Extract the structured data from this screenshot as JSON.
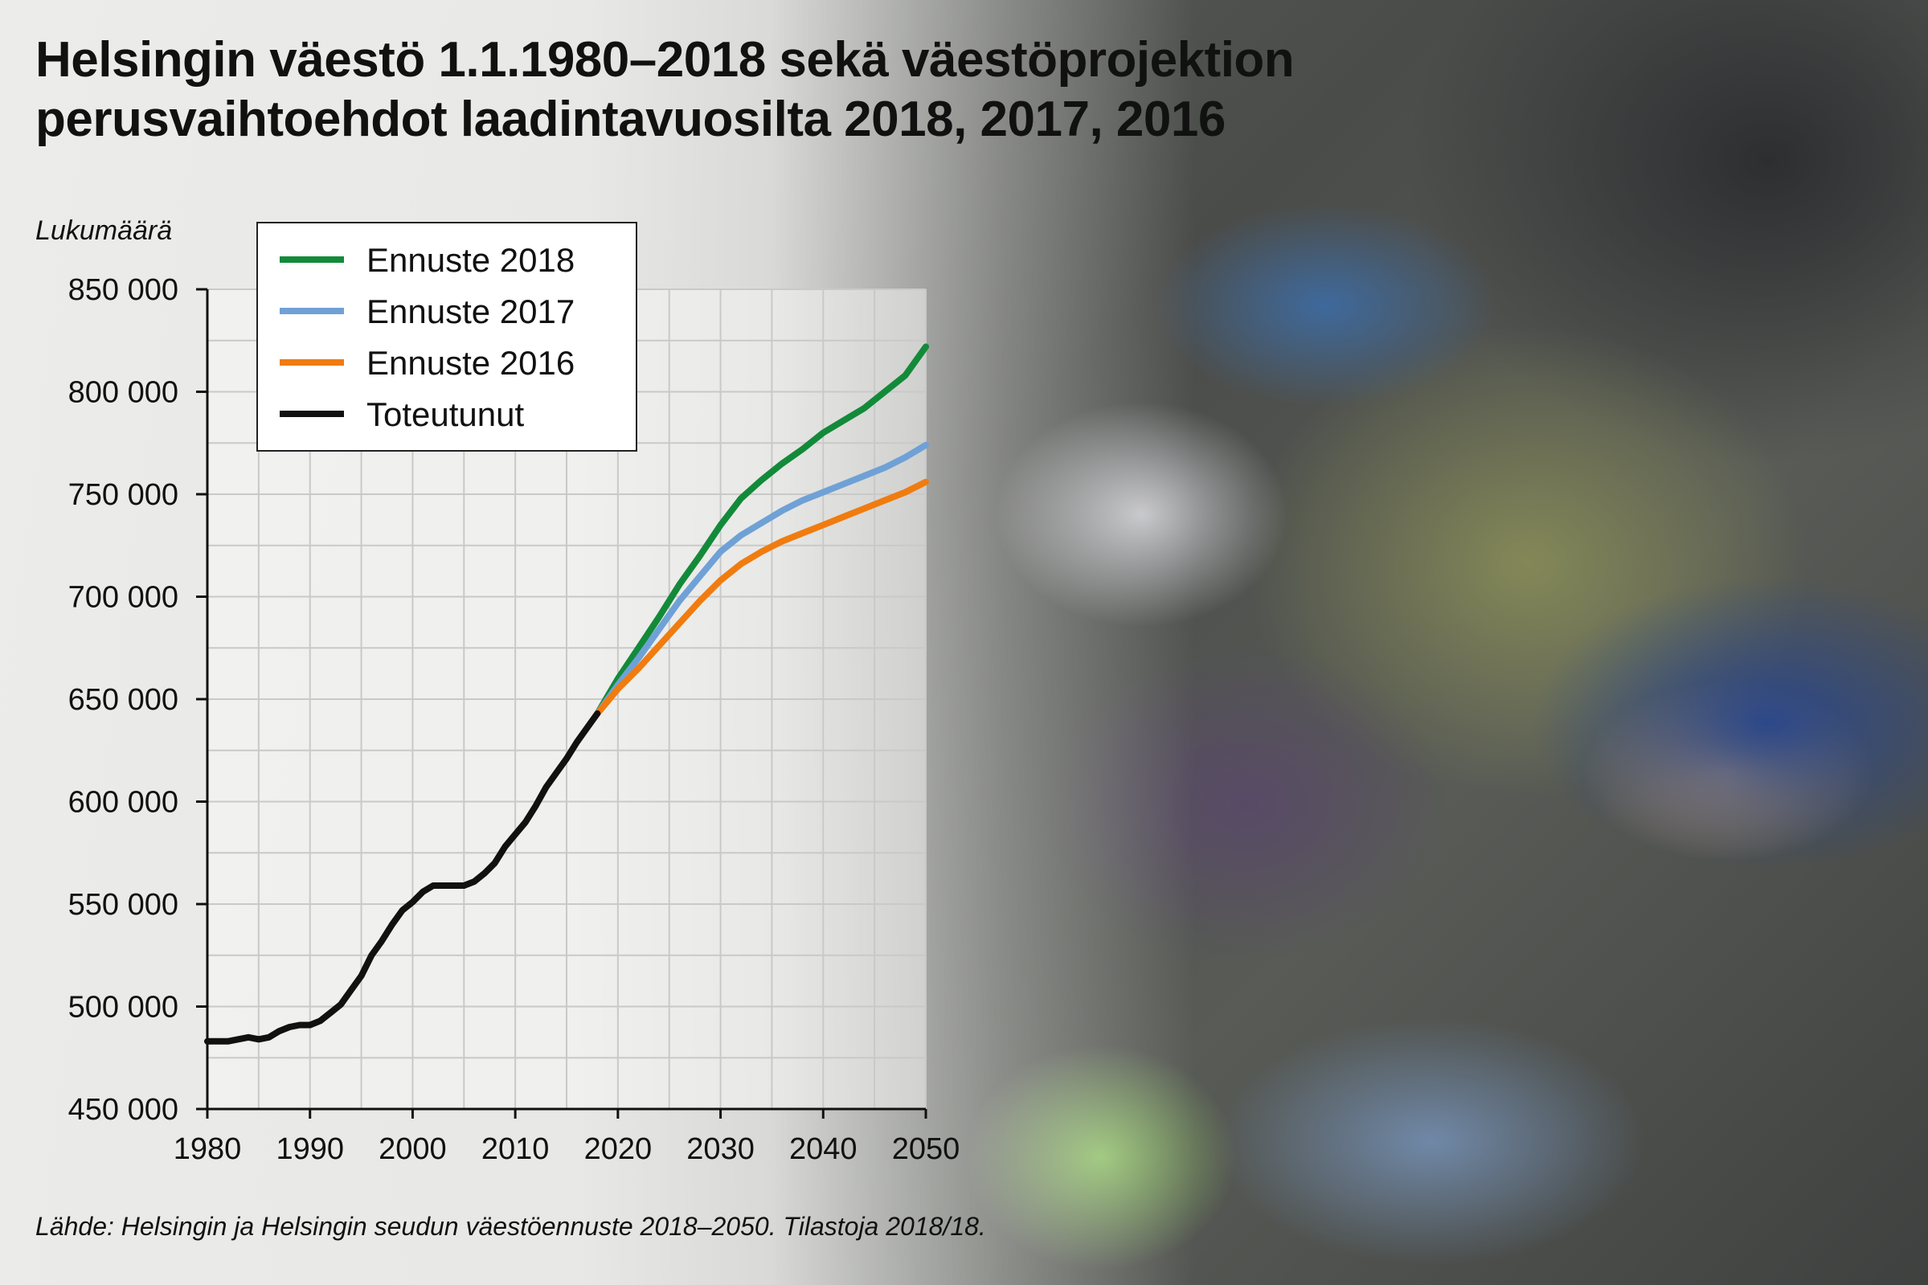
{
  "title_lines": [
    "Helsingin väestö 1.1.1980–2018 sekä väestöprojektion",
    "perusvaihtoehdot laadintavuosilta 2018, 2017, 2016"
  ],
  "source": "Lähde: Helsingin ja Helsingin seudun väestöennuste 2018–2050. Tilastoja 2018/18.",
  "chart_data": {
    "type": "line",
    "title": "Helsingin väestö 1.1.1980–2018 sekä väestöprojektion perusvaihtoehdot laadintavuosilta 2018, 2017, 2016",
    "ylabel": "Lukumäärä",
    "xlabel": "",
    "xlim": [
      1980,
      2050
    ],
    "ylim": [
      450000,
      850000
    ],
    "x_ticks": [
      1980,
      1990,
      2000,
      2010,
      2020,
      2030,
      2040,
      2050
    ],
    "y_ticks": [
      450000,
      500000,
      550000,
      600000,
      650000,
      700000,
      750000,
      800000,
      850000
    ],
    "y_tick_labels": [
      "450 000",
      "500 000",
      "550 000",
      "600 000",
      "650 000",
      "700 000",
      "750 000",
      "800 000",
      "850 000"
    ],
    "grid": true,
    "legend_position": "top-left",
    "series": [
      {
        "name": "Ennuste 2018",
        "color": "#138a3a",
        "points": [
          [
            2018,
            643000
          ],
          [
            2020,
            660000
          ],
          [
            2022,
            675000
          ],
          [
            2024,
            690000
          ],
          [
            2026,
            706000
          ],
          [
            2028,
            720000
          ],
          [
            2030,
            735000
          ],
          [
            2032,
            748000
          ],
          [
            2034,
            757000
          ],
          [
            2036,
            765000
          ],
          [
            2038,
            772000
          ],
          [
            2040,
            780000
          ],
          [
            2042,
            786000
          ],
          [
            2044,
            792000
          ],
          [
            2046,
            800000
          ],
          [
            2048,
            808000
          ],
          [
            2050,
            822000
          ]
        ]
      },
      {
        "name": "Ennuste 2017",
        "color": "#6fa1d6",
        "points": [
          [
            2018,
            643000
          ],
          [
            2020,
            657000
          ],
          [
            2022,
            670000
          ],
          [
            2024,
            684000
          ],
          [
            2026,
            698000
          ],
          [
            2028,
            710000
          ],
          [
            2030,
            722000
          ],
          [
            2032,
            730000
          ],
          [
            2034,
            736000
          ],
          [
            2036,
            742000
          ],
          [
            2038,
            747000
          ],
          [
            2040,
            751000
          ],
          [
            2042,
            755000
          ],
          [
            2044,
            759000
          ],
          [
            2046,
            763000
          ],
          [
            2048,
            768000
          ],
          [
            2050,
            774000
          ]
        ]
      },
      {
        "name": "Ennuste 2016",
        "color": "#f07c10",
        "points": [
          [
            2018,
            643000
          ],
          [
            2020,
            655000
          ],
          [
            2022,
            665000
          ],
          [
            2024,
            676000
          ],
          [
            2026,
            687000
          ],
          [
            2028,
            698000
          ],
          [
            2030,
            708000
          ],
          [
            2032,
            716000
          ],
          [
            2034,
            722000
          ],
          [
            2036,
            727000
          ],
          [
            2038,
            731000
          ],
          [
            2040,
            735000
          ],
          [
            2042,
            739000
          ],
          [
            2044,
            743000
          ],
          [
            2046,
            747000
          ],
          [
            2048,
            751000
          ],
          [
            2050,
            756000
          ]
        ]
      },
      {
        "name": "Toteutunut",
        "color": "#111111",
        "points": [
          [
            1980,
            483000
          ],
          [
            1981,
            483000
          ],
          [
            1982,
            483000
          ],
          [
            1983,
            484000
          ],
          [
            1984,
            485000
          ],
          [
            1985,
            484000
          ],
          [
            1986,
            485000
          ],
          [
            1987,
            488000
          ],
          [
            1988,
            490000
          ],
          [
            1989,
            491000
          ],
          [
            1990,
            491000
          ],
          [
            1991,
            493000
          ],
          [
            1992,
            497000
          ],
          [
            1993,
            501000
          ],
          [
            1994,
            508000
          ],
          [
            1995,
            515000
          ],
          [
            1996,
            525000
          ],
          [
            1997,
            532000
          ],
          [
            1998,
            540000
          ],
          [
            1999,
            547000
          ],
          [
            2000,
            551000
          ],
          [
            2001,
            556000
          ],
          [
            2002,
            559000
          ],
          [
            2003,
            559000
          ],
          [
            2004,
            559000
          ],
          [
            2005,
            559000
          ],
          [
            2006,
            561000
          ],
          [
            2007,
            565000
          ],
          [
            2008,
            570000
          ],
          [
            2009,
            578000
          ],
          [
            2010,
            584000
          ],
          [
            2011,
            590000
          ],
          [
            2012,
            598000
          ],
          [
            2013,
            607000
          ],
          [
            2014,
            614000
          ],
          [
            2015,
            621000
          ],
          [
            2016,
            629000
          ],
          [
            2017,
            636000
          ],
          [
            2018,
            643000
          ]
        ]
      }
    ]
  }
}
